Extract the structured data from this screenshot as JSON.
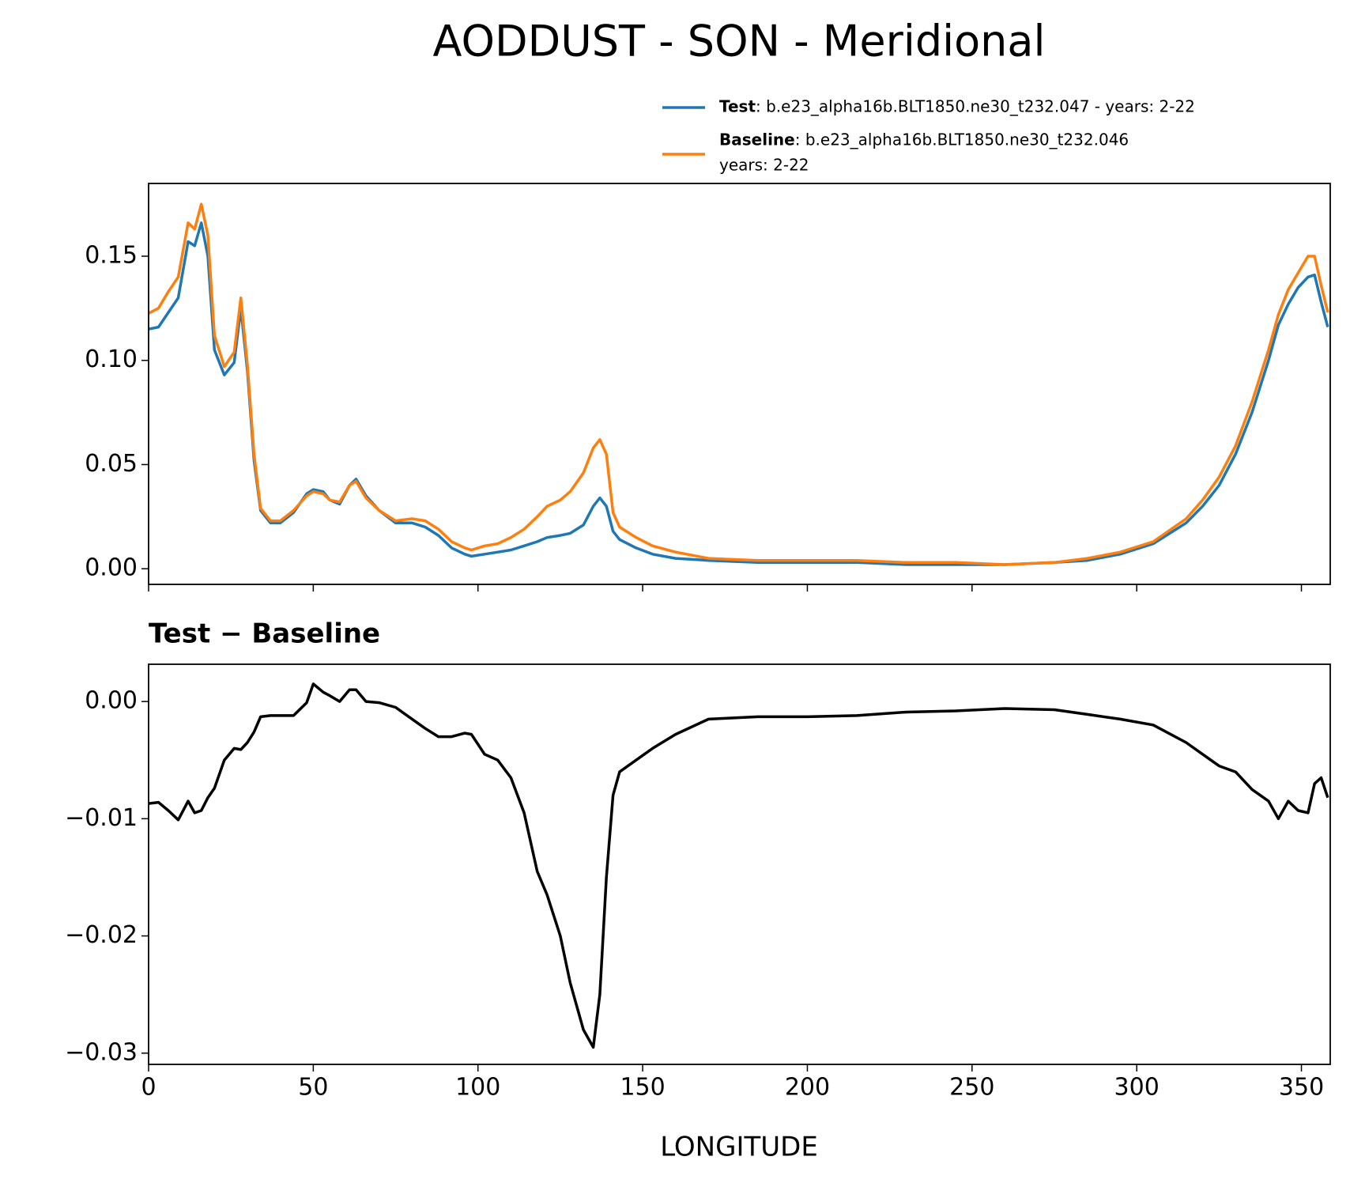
{
  "chart_data": [
    {
      "type": "line",
      "title": "AODDUST - SON - Meridional",
      "x": [
        0,
        3,
        6,
        9,
        12,
        14,
        16,
        18,
        20,
        23,
        26,
        28,
        30,
        32,
        34,
        37,
        40,
        44,
        48,
        50,
        53,
        55,
        58,
        61,
        63,
        66,
        70,
        75,
        80,
        84,
        88,
        92,
        96,
        98,
        102,
        106,
        110,
        114,
        118,
        121,
        125,
        128,
        132,
        135,
        137,
        139,
        141,
        143,
        148,
        153,
        160,
        170,
        185,
        200,
        215,
        230,
        245,
        260,
        275,
        285,
        295,
        305,
        315,
        320,
        325,
        330,
        335,
        340,
        343,
        346,
        349,
        352,
        354,
        356,
        358
      ],
      "series": [
        {
          "name": "Test",
          "label_lines": [
            ": b.e23_alpha16b.BLT1850.ne30_t232.047 - years: 2-22"
          ],
          "color": "#1f77b4",
          "values": [
            0.115,
            0.116,
            0.123,
            0.13,
            0.157,
            0.155,
            0.166,
            0.15,
            0.105,
            0.093,
            0.099,
            0.125,
            0.095,
            0.052,
            0.028,
            0.022,
            0.022,
            0.027,
            0.036,
            0.038,
            0.037,
            0.033,
            0.031,
            0.04,
            0.043,
            0.035,
            0.028,
            0.022,
            0.022,
            0.02,
            0.016,
            0.01,
            0.007,
            0.006,
            0.007,
            0.008,
            0.009,
            0.011,
            0.013,
            0.015,
            0.016,
            0.017,
            0.021,
            0.03,
            0.034,
            0.03,
            0.018,
            0.014,
            0.01,
            0.007,
            0.005,
            0.004,
            0.003,
            0.003,
            0.003,
            0.002,
            0.002,
            0.002,
            0.003,
            0.004,
            0.007,
            0.012,
            0.022,
            0.03,
            0.04,
            0.055,
            0.075,
            0.1,
            0.117,
            0.127,
            0.135,
            0.14,
            0.141,
            0.128,
            0.116
          ]
        },
        {
          "name": "Baseline",
          "label_lines": [
            ": b.e23_alpha16b.BLT1850.ne30_t232.046",
            "years: 2-22"
          ],
          "color": "#ff7f0e",
          "values": [
            0.1226,
            0.125,
            0.133,
            0.14,
            0.166,
            0.163,
            0.175,
            0.16,
            0.112,
            0.097,
            0.104,
            0.13,
            0.098,
            0.055,
            0.029,
            0.023,
            0.023,
            0.028,
            0.035,
            0.037,
            0.036,
            0.033,
            0.032,
            0.04,
            0.042,
            0.034,
            0.028,
            0.023,
            0.024,
            0.023,
            0.019,
            0.013,
            0.01,
            0.009,
            0.011,
            0.012,
            0.015,
            0.019,
            0.025,
            0.03,
            0.033,
            0.037,
            0.046,
            0.058,
            0.062,
            0.055,
            0.027,
            0.02,
            0.015,
            0.011,
            0.008,
            0.005,
            0.004,
            0.004,
            0.004,
            0.003,
            0.003,
            0.002,
            0.003,
            0.005,
            0.008,
            0.013,
            0.024,
            0.033,
            0.044,
            0.059,
            0.08,
            0.105,
            0.122,
            0.134,
            0.142,
            0.15,
            0.15,
            0.136,
            0.123
          ]
        }
      ],
      "xlim": [
        0,
        358.75
      ],
      "ylim": [
        -0.0075,
        0.1849
      ],
      "yticks": [
        {
          "value": 0,
          "label": "0.00"
        },
        0.05,
        {
          "value": 0.1,
          "label": "0.10"
        },
        0.15
      ]
    },
    {
      "type": "line",
      "subtitle": "Test − Baseline",
      "xlabel": "LONGITUDE",
      "x": [
        0,
        3,
        6,
        9,
        12,
        14,
        16,
        18,
        20,
        23,
        26,
        28,
        30,
        32,
        34,
        37,
        40,
        44,
        48,
        50,
        53,
        55,
        58,
        61,
        63,
        66,
        70,
        75,
        80,
        84,
        88,
        92,
        96,
        98,
        102,
        106,
        110,
        114,
        118,
        121,
        125,
        128,
        132,
        135,
        137,
        139,
        141,
        143,
        148,
        153,
        160,
        170,
        185,
        200,
        215,
        230,
        245,
        260,
        275,
        285,
        295,
        305,
        315,
        320,
        325,
        330,
        335,
        340,
        343,
        346,
        349,
        352,
        354,
        356,
        358
      ],
      "series": [
        {
          "color": "#000000",
          "values": [
            -0.0087,
            -0.0086,
            -0.0093,
            -0.0101,
            -0.0085,
            -0.0095,
            -0.0093,
            -0.0082,
            -0.0074,
            -0.005,
            -0.004,
            -0.0041,
            -0.0035,
            -0.0026,
            -0.0013,
            -0.0012,
            -0.0012,
            -0.0012,
            -0.0001,
            0.0015,
            0.0008,
            0.0005,
            0.0,
            0.001,
            0.001,
            0.0,
            -0.0001,
            -0.0005,
            -0.0015,
            -0.0023,
            -0.003,
            -0.003,
            -0.0027,
            -0.0028,
            -0.0045,
            -0.005,
            -0.0065,
            -0.0095,
            -0.0145,
            -0.0165,
            -0.02,
            -0.024,
            -0.028,
            -0.0295,
            -0.025,
            -0.015,
            -0.008,
            -0.006,
            -0.005,
            -0.004,
            -0.0028,
            -0.0015,
            -0.0013,
            -0.0013,
            -0.0012,
            -0.0009,
            -0.0008,
            -0.0006,
            -0.0007,
            -0.0011,
            -0.0015,
            -0.002,
            -0.0035,
            -0.0045,
            -0.0055,
            -0.006,
            -0.0075,
            -0.0085,
            -0.01,
            -0.0085,
            -0.0093,
            -0.0095,
            -0.007,
            -0.0065,
            -0.0082
          ]
        }
      ],
      "xlim": [
        0,
        358.75
      ],
      "ylim": [
        -0.03096,
        0.00318
      ],
      "xticks": [
        0,
        50,
        100,
        150,
        200,
        250,
        300,
        350
      ],
      "yticks": [
        {
          "value": 0,
          "label": "0.00"
        },
        {
          "value": -0.01,
          "label": "−0.01"
        },
        {
          "value": -0.02,
          "label": "−0.02"
        },
        {
          "value": -0.03,
          "label": "−0.03"
        }
      ]
    }
  ]
}
